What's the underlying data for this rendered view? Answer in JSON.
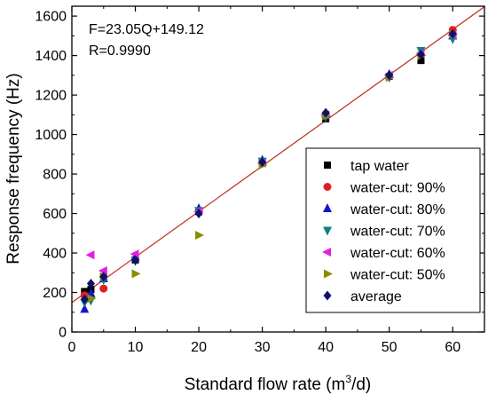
{
  "chart_data": {
    "type": "scatter",
    "xlabel": "Standard flow rate (m",
    "xlabel_sup": "3",
    "xlabel_tail": "/d)",
    "ylabel": "Response frequency (Hz)",
    "xlim": [
      0,
      65
    ],
    "ylim": [
      0,
      1650
    ],
    "x_ticks": [
      0,
      10,
      20,
      30,
      40,
      50,
      60
    ],
    "y_ticks": [
      0,
      200,
      400,
      600,
      800,
      1000,
      1200,
      1400,
      1600
    ],
    "grid": false,
    "legend_position": "bottom-right",
    "annotations": [
      "F=23.05Q+149.12",
      "R=0.9990"
    ],
    "fit_line": {
      "slope": 23.05,
      "intercept": 149.12,
      "color": "#c0392b"
    },
    "series": [
      {
        "name": "tap water",
        "marker": "square",
        "color": "#000000",
        "points": [
          [
            2,
            205
          ],
          [
            3,
            215
          ],
          [
            5,
            280
          ],
          [
            10,
            365
          ],
          [
            20,
            610
          ],
          [
            30,
            860
          ],
          [
            40,
            1080
          ],
          [
            50,
            1295
          ],
          [
            55,
            1375
          ],
          [
            60,
            1510
          ]
        ]
      },
      {
        "name": "water-cut: 90%",
        "marker": "circle",
        "color": "#e02020",
        "points": [
          [
            2,
            185
          ],
          [
            5,
            220
          ],
          [
            60,
            1530
          ]
        ]
      },
      {
        "name": "water-cut: 80%",
        "marker": "triangle-up",
        "color": "#1515d0",
        "points": [
          [
            2,
            115
          ],
          [
            3,
            195
          ],
          [
            5,
            270
          ],
          [
            10,
            380
          ],
          [
            20,
            625
          ],
          [
            30,
            870
          ],
          [
            40,
            1105
          ],
          [
            50,
            1305
          ],
          [
            55,
            1415
          ],
          [
            60,
            1500
          ]
        ]
      },
      {
        "name": "water-cut: 70%",
        "marker": "triangle-down",
        "color": "#108080",
        "points": [
          [
            2,
            150
          ],
          [
            3,
            160
          ],
          [
            5,
            265
          ],
          [
            10,
            360
          ],
          [
            20,
            615
          ],
          [
            30,
            865
          ],
          [
            40,
            1090
          ],
          [
            50,
            1290
          ],
          [
            55,
            1425
          ],
          [
            60,
            1485
          ]
        ]
      },
      {
        "name": "water-cut: 60%",
        "marker": "triangle-left",
        "color": "#e020e0",
        "points": [
          [
            3,
            390
          ],
          [
            5,
            310
          ],
          [
            10,
            395
          ],
          [
            20,
            610
          ],
          [
            30,
            855
          ],
          [
            40,
            1100
          ],
          [
            50,
            1300
          ],
          [
            55,
            1410
          ],
          [
            60,
            1505
          ]
        ]
      },
      {
        "name": "water-cut: 50%",
        "marker": "triangle-right",
        "color": "#8c8c00",
        "points": [
          [
            3,
            170
          ],
          [
            5,
            280
          ],
          [
            10,
            295
          ],
          [
            20,
            490
          ],
          [
            30,
            845
          ],
          [
            40,
            1095
          ],
          [
            50,
            1290
          ],
          [
            55,
            1400
          ],
          [
            60,
            1510
          ]
        ]
      },
      {
        "name": "average",
        "marker": "diamond",
        "color": "#10106a",
        "points": [
          [
            2,
            165
          ],
          [
            3,
            245
          ],
          [
            5,
            280
          ],
          [
            10,
            365
          ],
          [
            20,
            600
          ],
          [
            30,
            860
          ],
          [
            40,
            1110
          ],
          [
            50,
            1300
          ],
          [
            55,
            1405
          ],
          [
            60,
            1510
          ]
        ]
      }
    ]
  }
}
